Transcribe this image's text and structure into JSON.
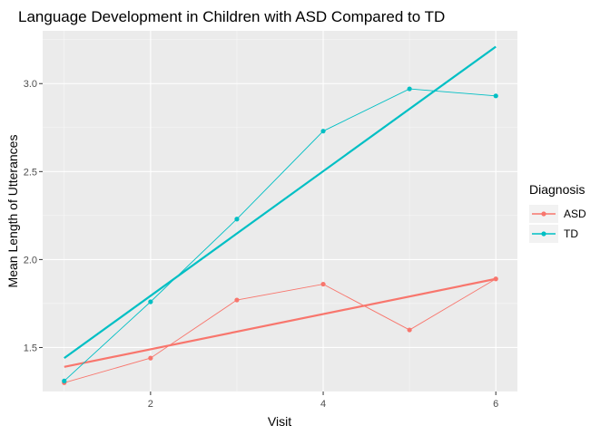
{
  "chart_data": {
    "type": "line",
    "title": "Language Development in Children with ASD Compared to TD",
    "xlabel": "Visit",
    "ylabel": "Mean Length of Utterances",
    "xlim": [
      0.75,
      6.25
    ],
    "ylim": [
      1.25,
      3.3
    ],
    "x_ticks": [
      2,
      4,
      6
    ],
    "y_ticks": [
      1.5,
      2.0,
      2.5,
      3.0
    ],
    "x_tick_labels": [
      "2",
      "4",
      "6"
    ],
    "y_tick_labels": [
      "1.5",
      "2.0",
      "2.5",
      "3.0"
    ],
    "x": [
      1,
      2,
      3,
      4,
      5,
      6
    ],
    "grid": true,
    "legend_position": "right",
    "legend_title": "Diagnosis",
    "series": [
      {
        "name": "ASD",
        "color": "#F8766D",
        "values": [
          1.3,
          1.44,
          1.77,
          1.86,
          1.6,
          1.89
        ],
        "trend": [
          1.39,
          1.89
        ]
      },
      {
        "name": "TD",
        "color": "#00BFC4",
        "values": [
          1.31,
          1.76,
          2.23,
          2.73,
          2.97,
          2.93
        ],
        "trend": [
          1.44,
          3.21
        ]
      }
    ]
  }
}
